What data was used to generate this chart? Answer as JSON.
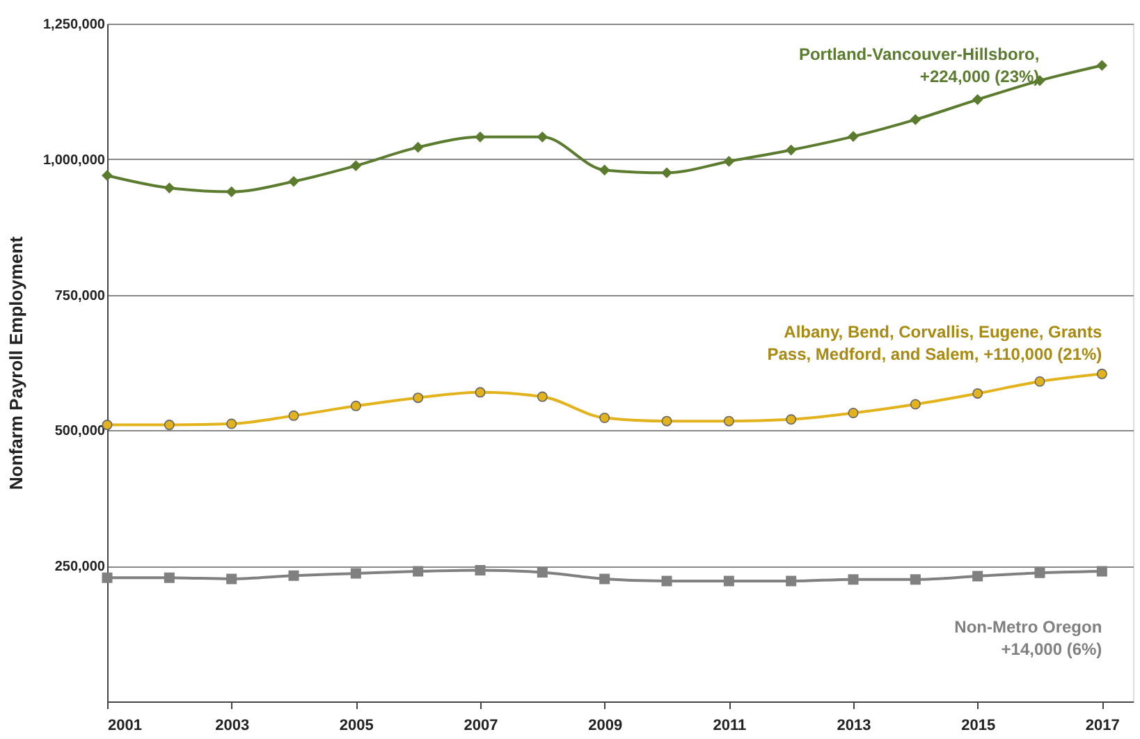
{
  "chart_data": {
    "type": "line",
    "ylabel": "Nonfarm Payroll Employment",
    "x": [
      2001,
      2002,
      2003,
      2004,
      2005,
      2006,
      2007,
      2008,
      2009,
      2010,
      2011,
      2012,
      2013,
      2014,
      2015,
      2016,
      2017
    ],
    "xlim": [
      2001,
      2017.5
    ],
    "xticks": [
      2001,
      2003,
      2005,
      2007,
      2009,
      2011,
      2013,
      2015,
      2017
    ],
    "ylim": [
      0,
      1250000
    ],
    "yticks": [
      {
        "value": 0,
        "label": null
      },
      {
        "value": 250000,
        "label": "250,000"
      },
      {
        "value": 500000,
        "label": "500,000"
      },
      {
        "value": 750000,
        "label": "750,000"
      },
      {
        "value": 1000000,
        "label": "1,000,000"
      },
      {
        "value": 1250000,
        "label": "1,250,000"
      }
    ],
    "grid": "y",
    "series": [
      {
        "name": "Portland-Vancouver-Hillsboro,\n+224,000 (23%)",
        "color": "#5b7b2f",
        "marker": "diamond",
        "values": [
          970000,
          947000,
          940000,
          959000,
          988000,
          1022000,
          1041000,
          1041000,
          980000,
          975000,
          996000,
          1017000,
          1042000,
          1073000,
          1110000,
          1145000,
          1173000
        ]
      },
      {
        "name": "Albany, Bend, Corvallis, Eugene, Grants\nPass, Medford, and Salem, +110,000 (21%)",
        "color": "#e2b31c",
        "marker": "circle",
        "values": [
          510000,
          510000,
          512000,
          527000,
          545000,
          560000,
          570000,
          562000,
          523000,
          517000,
          517000,
          520000,
          532000,
          548000,
          568000,
          590000,
          604000
        ]
      },
      {
        "name": "Non-Metro Oregon\n+14,000 (6%)",
        "color": "#808080",
        "marker": "square",
        "values": [
          228000,
          228000,
          226000,
          232000,
          236000,
          240000,
          242000,
          238000,
          226000,
          222000,
          222000,
          222000,
          225000,
          225000,
          231000,
          237000,
          240000
        ]
      }
    ]
  }
}
